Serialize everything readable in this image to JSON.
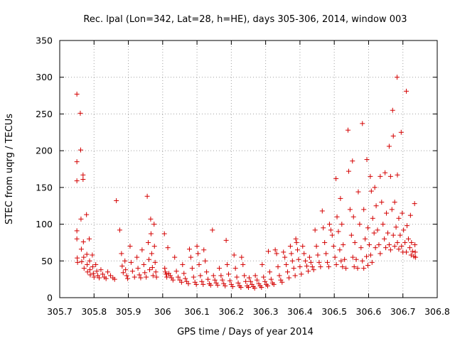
{
  "chart_data": {
    "type": "scatter",
    "title": "Rec. lpal (Lon=342, Lat=28, h=HE), days 305-306, 2014, window 003",
    "xlabel": "GPS time / Days of year 2014",
    "ylabel": "STEC from uqrg / TECUs",
    "xlim": [
      305.7,
      306.8
    ],
    "ylim": [
      0,
      350
    ],
    "grid": true,
    "legend": "none",
    "marker": "+",
    "color": "#d40000",
    "x_ticks": [
      "305.7",
      "305.8",
      "305.9",
      "306",
      "306.1",
      "306.2",
      "306.3",
      "306.4",
      "306.5",
      "306.6",
      "306.7",
      "306.8"
    ],
    "y_ticks": [
      "0",
      "50",
      "100",
      "150",
      "200",
      "250",
      "300",
      "350"
    ],
    "x_tick_values": [
      305.7,
      305.8,
      305.9,
      306.0,
      306.1,
      306.2,
      306.3,
      306.4,
      306.5,
      306.6,
      306.7,
      306.8
    ],
    "y_tick_values": [
      0,
      50,
      100,
      150,
      200,
      250,
      300,
      350
    ],
    "points": [
      [
        305.75,
        277
      ],
      [
        305.75,
        185
      ],
      [
        305.75,
        159
      ],
      [
        305.75,
        91
      ],
      [
        305.75,
        80
      ],
      [
        305.751,
        54
      ],
      [
        305.752,
        48
      ],
      [
        305.76,
        251
      ],
      [
        305.761,
        201
      ],
      [
        305.762,
        107
      ],
      [
        305.763,
        66
      ],
      [
        305.764,
        49
      ],
      [
        305.768,
        167
      ],
      [
        305.768,
        161
      ],
      [
        305.769,
        76
      ],
      [
        305.77,
        55
      ],
      [
        305.771,
        40
      ],
      [
        305.778,
        113
      ],
      [
        305.779,
        59
      ],
      [
        305.78,
        45
      ],
      [
        305.781,
        35
      ],
      [
        305.786,
        80
      ],
      [
        305.787,
        50
      ],
      [
        305.788,
        38
      ],
      [
        305.789,
        31
      ],
      [
        305.795,
        58
      ],
      [
        305.796,
        42
      ],
      [
        305.798,
        33
      ],
      [
        305.8,
        28
      ],
      [
        305.805,
        45
      ],
      [
        305.808,
        36
      ],
      [
        305.811,
        30
      ],
      [
        305.815,
        27
      ],
      [
        305.82,
        38
      ],
      [
        305.825,
        32
      ],
      [
        305.83,
        28
      ],
      [
        305.835,
        26
      ],
      [
        305.84,
        35
      ],
      [
        305.848,
        30
      ],
      [
        305.855,
        27
      ],
      [
        305.86,
        25
      ],
      [
        305.865,
        132
      ],
      [
        305.875,
        92
      ],
      [
        305.88,
        60
      ],
      [
        305.882,
        43
      ],
      [
        305.885,
        34
      ],
      [
        305.89,
        50
      ],
      [
        305.892,
        38
      ],
      [
        305.895,
        30
      ],
      [
        305.898,
        26
      ],
      [
        305.905,
        70
      ],
      [
        305.908,
        48
      ],
      [
        305.912,
        36
      ],
      [
        305.918,
        28
      ],
      [
        305.925,
        55
      ],
      [
        305.928,
        40
      ],
      [
        305.932,
        31
      ],
      [
        305.936,
        27
      ],
      [
        305.94,
        65
      ],
      [
        305.945,
        45
      ],
      [
        305.948,
        34
      ],
      [
        305.952,
        28
      ],
      [
        305.955,
        138
      ],
      [
        305.958,
        75
      ],
      [
        305.96,
        52
      ],
      [
        305.962,
        38
      ],
      [
        305.965,
        107
      ],
      [
        305.966,
        87
      ],
      [
        305.968,
        60
      ],
      [
        305.97,
        41
      ],
      [
        305.972,
        30
      ],
      [
        305.975,
        100
      ],
      [
        305.976,
        70
      ],
      [
        305.978,
        48
      ],
      [
        305.98,
        35
      ],
      [
        305.982,
        28
      ],
      [
        306.005,
        87
      ],
      [
        306.006,
        40
      ],
      [
        306.008,
        35
      ],
      [
        306.01,
        32
      ],
      [
        306.012,
        28
      ],
      [
        306.015,
        68
      ],
      [
        306.018,
        33
      ],
      [
        306.022,
        30
      ],
      [
        306.026,
        27
      ],
      [
        306.03,
        24
      ],
      [
        306.035,
        55
      ],
      [
        306.04,
        36
      ],
      [
        306.045,
        28
      ],
      [
        306.05,
        24
      ],
      [
        306.055,
        21
      ],
      [
        306.058,
        45
      ],
      [
        306.062,
        33
      ],
      [
        306.066,
        26
      ],
      [
        306.07,
        22
      ],
      [
        306.075,
        19
      ],
      [
        306.078,
        66
      ],
      [
        306.082,
        55
      ],
      [
        306.086,
        40
      ],
      [
        306.09,
        28
      ],
      [
        306.094,
        21
      ],
      [
        306.098,
        18
      ],
      [
        306.1,
        70
      ],
      [
        306.103,
        60
      ],
      [
        306.106,
        45
      ],
      [
        306.11,
        30
      ],
      [
        306.114,
        22
      ],
      [
        306.118,
        18
      ],
      [
        306.12,
        65
      ],
      [
        306.124,
        50
      ],
      [
        306.128,
        35
      ],
      [
        306.132,
        25
      ],
      [
        306.136,
        19
      ],
      [
        306.14,
        17
      ],
      [
        306.145,
        92
      ],
      [
        306.148,
        30
      ],
      [
        306.152,
        24
      ],
      [
        306.156,
        20
      ],
      [
        306.16,
        17
      ],
      [
        306.165,
        40
      ],
      [
        306.17,
        30
      ],
      [
        306.174,
        24
      ],
      [
        306.178,
        19
      ],
      [
        306.182,
        16
      ],
      [
        306.185,
        78
      ],
      [
        306.188,
        45
      ],
      [
        306.192,
        32
      ],
      [
        306.196,
        23
      ],
      [
        306.2,
        18
      ],
      [
        306.204,
        15
      ],
      [
        306.208,
        58
      ],
      [
        306.212,
        40
      ],
      [
        306.216,
        28
      ],
      [
        306.22,
        20
      ],
      [
        306.224,
        16
      ],
      [
        306.228,
        14
      ],
      [
        306.23,
        55
      ],
      [
        306.234,
        45
      ],
      [
        306.238,
        30
      ],
      [
        306.242,
        22
      ],
      [
        306.246,
        16
      ],
      [
        306.25,
        14
      ],
      [
        306.252,
        27
      ],
      [
        306.256,
        22
      ],
      [
        306.26,
        18
      ],
      [
        306.264,
        15
      ],
      [
        306.268,
        13
      ],
      [
        306.27,
        30
      ],
      [
        306.275,
        24
      ],
      [
        306.28,
        19
      ],
      [
        306.284,
        16
      ],
      [
        306.288,
        14
      ],
      [
        306.29,
        45
      ],
      [
        306.294,
        28
      ],
      [
        306.298,
        22
      ],
      [
        306.302,
        18
      ],
      [
        306.306,
        16
      ],
      [
        306.308,
        63
      ],
      [
        306.312,
        35
      ],
      [
        306.316,
        25
      ],
      [
        306.32,
        20
      ],
      [
        306.324,
        18
      ],
      [
        306.328,
        65
      ],
      [
        306.332,
        60
      ],
      [
        306.336,
        42
      ],
      [
        306.34,
        30
      ],
      [
        306.344,
        24
      ],
      [
        306.348,
        21
      ],
      [
        306.352,
        62
      ],
      [
        306.356,
        55
      ],
      [
        306.36,
        45
      ],
      [
        306.364,
        35
      ],
      [
        306.368,
        27
      ],
      [
        306.372,
        70
      ],
      [
        306.375,
        60
      ],
      [
        306.378,
        50
      ],
      [
        306.382,
        40
      ],
      [
        306.386,
        30
      ],
      [
        306.388,
        80
      ],
      [
        306.39,
        75
      ],
      [
        306.393,
        65
      ],
      [
        306.396,
        52
      ],
      [
        306.4,
        42
      ],
      [
        306.404,
        32
      ],
      [
        306.408,
        70
      ],
      [
        306.412,
        60
      ],
      [
        306.416,
        50
      ],
      [
        306.42,
        43
      ],
      [
        306.424,
        36
      ],
      [
        306.428,
        55
      ],
      [
        306.432,
        48
      ],
      [
        306.436,
        42
      ],
      [
        306.44,
        38
      ],
      [
        306.444,
        92
      ],
      [
        306.448,
        70
      ],
      [
        306.452,
        58
      ],
      [
        306.456,
        48
      ],
      [
        306.46,
        42
      ],
      [
        306.465,
        118
      ],
      [
        306.468,
        95
      ],
      [
        306.472,
        75
      ],
      [
        306.476,
        60
      ],
      [
        306.48,
        48
      ],
      [
        306.484,
        42
      ],
      [
        306.486,
        100
      ],
      [
        306.49,
        92
      ],
      [
        306.494,
        85
      ],
      [
        306.498,
        70
      ],
      [
        306.502,
        55
      ],
      [
        306.506,
        45
      ],
      [
        306.505,
        162
      ],
      [
        306.508,
        110
      ],
      [
        306.512,
        90
      ],
      [
        306.516,
        65
      ],
      [
        306.52,
        50
      ],
      [
        306.524,
        42
      ],
      [
        306.518,
        135
      ],
      [
        306.522,
        100
      ],
      [
        306.526,
        72
      ],
      [
        306.53,
        52
      ],
      [
        306.534,
        40
      ],
      [
        306.54,
        228
      ],
      [
        306.542,
        172
      ],
      [
        306.546,
        120
      ],
      [
        306.55,
        85
      ],
      [
        306.554,
        55
      ],
      [
        306.558,
        42
      ],
      [
        306.553,
        186
      ],
      [
        306.556,
        110
      ],
      [
        306.56,
        75
      ],
      [
        306.564,
        52
      ],
      [
        306.568,
        40
      ],
      [
        306.57,
        144
      ],
      [
        306.574,
        100
      ],
      [
        306.578,
        68
      ],
      [
        306.582,
        50
      ],
      [
        306.586,
        40
      ],
      [
        306.582,
        237
      ],
      [
        306.586,
        120
      ],
      [
        306.59,
        80
      ],
      [
        306.594,
        56
      ],
      [
        306.598,
        44
      ],
      [
        306.595,
        188
      ],
      [
        306.598,
        95
      ],
      [
        306.602,
        72
      ],
      [
        306.606,
        58
      ],
      [
        306.61,
        48
      ],
      [
        306.605,
        165
      ],
      [
        306.608,
        145
      ],
      [
        306.612,
        108
      ],
      [
        306.616,
        88
      ],
      [
        306.62,
        68
      ],
      [
        306.618,
        150
      ],
      [
        306.622,
        125
      ],
      [
        306.626,
        92
      ],
      [
        306.63,
        72
      ],
      [
        306.634,
        60
      ],
      [
        306.634,
        165
      ],
      [
        306.638,
        130
      ],
      [
        306.642,
        100
      ],
      [
        306.646,
        80
      ],
      [
        306.65,
        68
      ],
      [
        306.648,
        170
      ],
      [
        306.652,
        115
      ],
      [
        306.656,
        88
      ],
      [
        306.66,
        72
      ],
      [
        306.664,
        65
      ],
      [
        306.66,
        206
      ],
      [
        306.664,
        165
      ],
      [
        306.668,
        120
      ],
      [
        306.672,
        85
      ],
      [
        306.676,
        70
      ],
      [
        306.67,
        255
      ],
      [
        306.672,
        220
      ],
      [
        306.676,
        130
      ],
      [
        306.68,
        96
      ],
      [
        306.684,
        75
      ],
      [
        306.688,
        66
      ],
      [
        306.683,
        300
      ],
      [
        306.684,
        167
      ],
      [
        306.688,
        108
      ],
      [
        306.692,
        85
      ],
      [
        306.696,
        70
      ],
      [
        306.7,
        62
      ],
      [
        306.695,
        225
      ],
      [
        306.698,
        115
      ],
      [
        306.702,
        92
      ],
      [
        306.706,
        75
      ],
      [
        306.71,
        62
      ],
      [
        306.71,
        281
      ],
      [
        306.712,
        98
      ],
      [
        306.716,
        80
      ],
      [
        306.72,
        68
      ],
      [
        306.724,
        58
      ],
      [
        306.722,
        112
      ],
      [
        306.725,
        75
      ],
      [
        306.728,
        63
      ],
      [
        306.732,
        56
      ],
      [
        306.734,
        128
      ],
      [
        306.735,
        72
      ],
      [
        306.736,
        62
      ],
      [
        306.737,
        55
      ]
    ]
  }
}
